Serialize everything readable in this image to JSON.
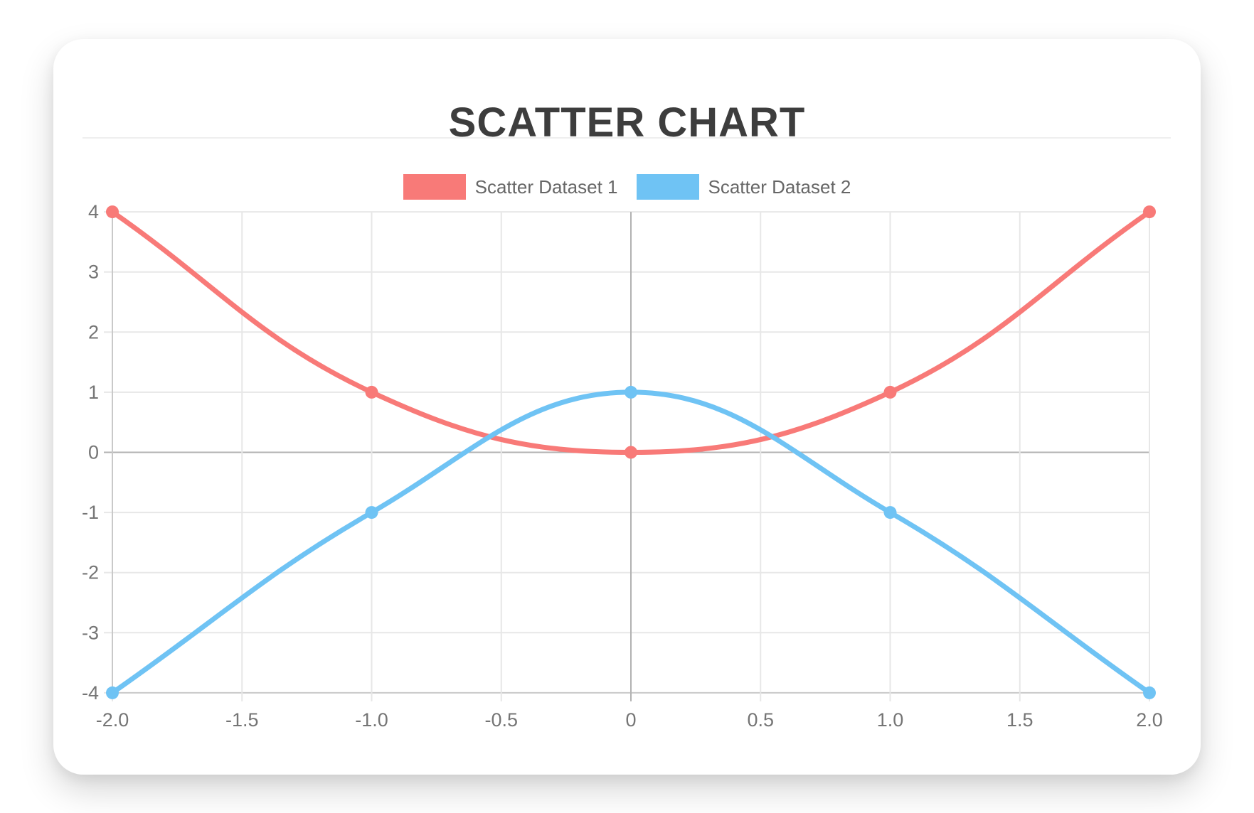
{
  "title": {
    "text": "SCATTER CHART",
    "color": "#3d3d3d"
  },
  "legend": {
    "position": "top",
    "items": [
      {
        "label": "Scatter Dataset 1",
        "color": "#f87a78"
      },
      {
        "label": "Scatter Dataset 2",
        "color": "#6fc3f4"
      }
    ]
  },
  "chart_data": {
    "type": "scatter",
    "title": "SCATTER CHART",
    "xlabel": "",
    "ylabel": "",
    "xlim": [
      -2,
      2
    ],
    "ylim": [
      -4,
      4
    ],
    "grid": true,
    "legend_position": "top",
    "x_ticks": [
      "-2.0",
      "-1.5",
      "-1.0",
      "-0.5",
      "0",
      "0.5",
      "1.0",
      "1.5",
      "2.0"
    ],
    "x_tick_values": [
      -2,
      -1.5,
      -1,
      -0.5,
      0,
      0.5,
      1,
      1.5,
      2
    ],
    "y_ticks": [
      "4",
      "3",
      "2",
      "1",
      "0",
      "-1",
      "-2",
      "-3",
      "-4"
    ],
    "y_tick_values": [
      4,
      3,
      2,
      1,
      0,
      -1,
      -2,
      -3,
      -4
    ],
    "line_tension": 0.4,
    "line_width": 7,
    "point_radius": 9,
    "series": [
      {
        "name": "Scatter Dataset 1",
        "color": "#f87a78",
        "show_line": true,
        "points": [
          {
            "x": -2,
            "y": 4
          },
          {
            "x": -1,
            "y": 1
          },
          {
            "x": 0,
            "y": 0
          },
          {
            "x": 1,
            "y": 1
          },
          {
            "x": 2,
            "y": 4
          }
        ]
      },
      {
        "name": "Scatter Dataset 2",
        "color": "#6fc3f4",
        "show_line": true,
        "points": [
          {
            "x": -2,
            "y": -4
          },
          {
            "x": -1,
            "y": -1
          },
          {
            "x": 0,
            "y": 1
          },
          {
            "x": 1,
            "y": -1
          },
          {
            "x": 2,
            "y": -4
          }
        ]
      }
    ],
    "colors": {
      "grid_line": "#e7e7e7",
      "zero_line": "#b2b2b2",
      "axis_border": "#c9c9c9",
      "tick_text": "#757575"
    }
  }
}
